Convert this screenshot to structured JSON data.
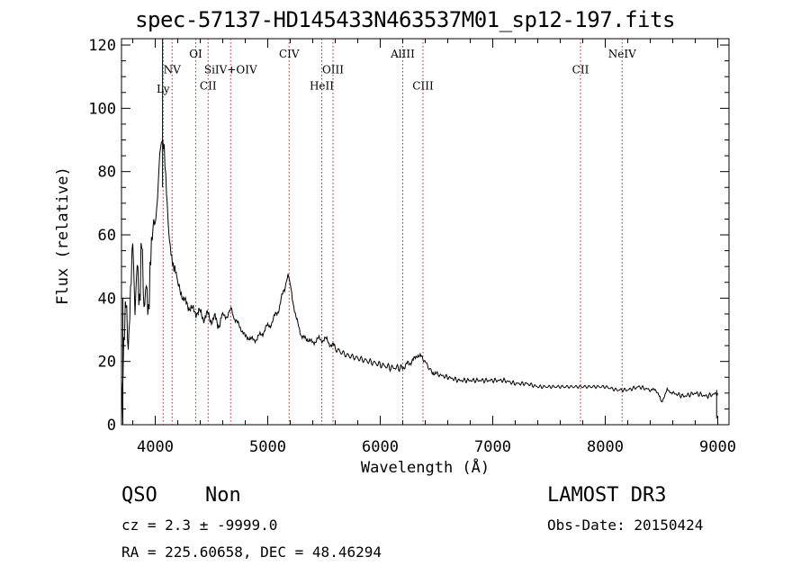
{
  "chart_data": {
    "type": "line",
    "title": "spec-57137-HD145433N463537M01_sp12-197.fits",
    "xlabel": "Wavelength (Å)",
    "ylabel": "Flux (relative)",
    "xlim": [
      3700,
      9100
    ],
    "ylim": [
      0,
      122
    ],
    "xticks": [
      4000,
      5000,
      6000,
      7000,
      8000,
      9000
    ],
    "yticks": [
      0,
      20,
      40,
      60,
      80,
      100,
      120
    ],
    "grid": false,
    "line_color": "#000000",
    "marker_color": "#b22222",
    "spectrum": {
      "x": [
        3700,
        3720,
        3740,
        3760,
        3780,
        3800,
        3820,
        3840,
        3860,
        3880,
        3900,
        3920,
        3940,
        3960,
        3980,
        4000,
        4020,
        4040,
        4060,
        4080,
        4100,
        4120,
        4140,
        4160,
        4180,
        4200,
        4250,
        4300,
        4350,
        4400,
        4450,
        4500,
        4550,
        4600,
        4650,
        4680,
        4700,
        4750,
        4800,
        4850,
        4900,
        4950,
        5000,
        5050,
        5100,
        5150,
        5180,
        5200,
        5250,
        5300,
        5350,
        5400,
        5450,
        5500,
        5550,
        5600,
        5700,
        5800,
        5900,
        6000,
        6100,
        6200,
        6280,
        6330,
        6380,
        6450,
        6500,
        6600,
        6700,
        6800,
        6900,
        7000,
        7100,
        7200,
        7300,
        7400,
        7500,
        7600,
        7700,
        7800,
        7900,
        8000,
        8100,
        8200,
        8300,
        8400,
        8450,
        8480,
        8500,
        8550,
        8600,
        8700,
        8800,
        8900,
        9000
      ],
      "y": [
        5,
        30,
        45,
        25,
        40,
        55,
        30,
        48,
        35,
        62,
        40,
        50,
        38,
        55,
        60,
        62,
        70,
        85,
        90,
        88,
        75,
        62,
        55,
        50,
        48,
        44,
        40,
        37,
        36,
        35,
        34,
        34,
        32,
        34,
        35,
        37,
        34,
        31,
        28,
        27,
        27,
        29,
        31,
        33,
        37,
        43,
        47,
        44,
        34,
        28,
        27,
        26,
        27,
        27,
        26,
        24,
        22,
        21,
        20,
        19,
        18,
        18,
        20,
        22,
        21,
        17,
        16,
        15,
        14,
        14,
        14,
        14,
        14,
        13,
        13,
        12,
        12,
        12,
        12,
        12,
        12,
        12,
        11,
        11,
        12,
        11,
        11,
        9,
        7,
        11,
        10,
        9,
        10,
        9,
        10
      ]
    },
    "emission_lines": [
      {
        "label": "Ly",
        "wavelength": 4070,
        "label_y": 105
      },
      {
        "label": "NV",
        "wavelength": 4150,
        "label_y": 111
      },
      {
        "label": "OI",
        "wavelength": 4360,
        "label_y": 116
      },
      {
        "label": "CII",
        "wavelength": 4470,
        "label_y": 106
      },
      {
        "label": "SiIV+OIV",
        "wavelength": 4670,
        "label_y": 111
      },
      {
        "label": "CIV",
        "wavelength": 5190,
        "label_y": 116
      },
      {
        "label": "HeII",
        "wavelength": 5480,
        "label_y": 106
      },
      {
        "label": "OIII",
        "wavelength": 5580,
        "label_y": 111
      },
      {
        "label": "AlIII",
        "wavelength": 6200,
        "label_y": 116
      },
      {
        "label": "CIII",
        "wavelength": 6380,
        "label_y": 106
      },
      {
        "label": "CII",
        "wavelength": 7780,
        "label_y": 111
      },
      {
        "label": "NeIV",
        "wavelength": 8150,
        "label_y": 116
      }
    ]
  },
  "info": {
    "class": "QSO",
    "subclass": "Non",
    "survey": "LAMOST DR3",
    "cz": "cz = 2.3 ± -9999.0",
    "obs_date": "Obs-Date: 20150424",
    "coords": "RA = 225.60658, DEC =  48.46294"
  }
}
